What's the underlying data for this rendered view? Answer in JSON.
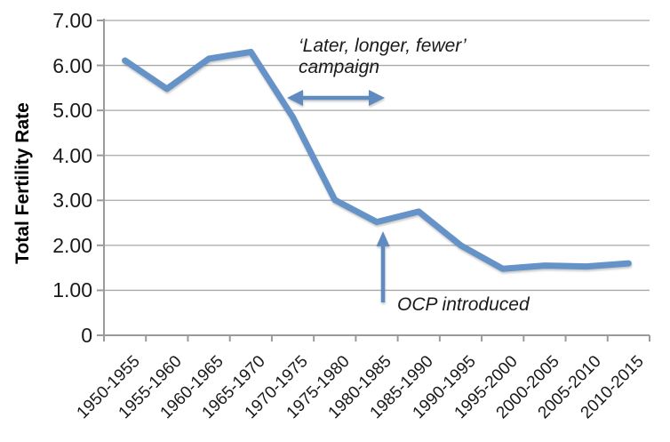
{
  "chart_data": {
    "type": "line",
    "title": "",
    "xlabel": "",
    "ylabel": "Total Fertility Rate",
    "categories": [
      "1950-1955",
      "1955-1960",
      "1960-1965",
      "1965-1970",
      "1970-1975",
      "1975-1980",
      "1980-1985",
      "1985-1990",
      "1990-1995",
      "1995-2000",
      "2000-2005",
      "2005-2010",
      "2010-2015"
    ],
    "series": [
      {
        "name": "Total Fertility Rate",
        "values": [
          6.11,
          5.48,
          6.15,
          6.3,
          4.85,
          3.01,
          2.52,
          2.75,
          2.0,
          1.48,
          1.55,
          1.53,
          1.6
        ]
      }
    ],
    "ylim": [
      0,
      7
    ],
    "ytick_labels": [
      "7.00",
      "6.00",
      "5.00",
      "4.00",
      "3.00",
      "2.00",
      "1.00",
      "0"
    ],
    "grid": true,
    "legend": "none",
    "line_color": "#6593c8",
    "arrow_color": "#5e8bc0",
    "grid_color": "#a8a8a8",
    "axis_color": "#9a9a9a",
    "text_color": "#1a1a1a",
    "annotations": {
      "campaign": {
        "text": "‘Later, longer, fewer’\ncampaign",
        "arrow": "horizontal-double-arrow",
        "arrow_span_categories": [
          "1970-1975",
          "1980-1985"
        ],
        "arrow_y_value": 5.25
      },
      "ocp": {
        "text": "OCP introduced",
        "arrow": "vertical-up-arrow",
        "points_to": {
          "category": "1980-1985",
          "value": 2.52
        }
      }
    }
  }
}
